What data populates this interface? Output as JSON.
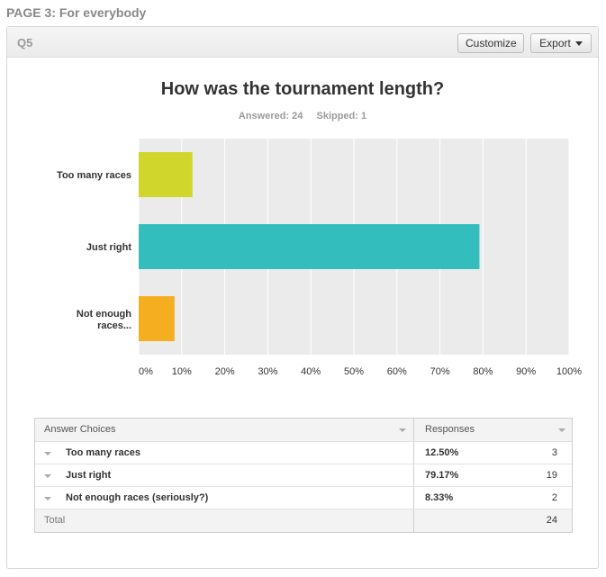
{
  "page": {
    "header": "PAGE 3: For everybody"
  },
  "question": {
    "label": "Q5",
    "customize_label": "Customize",
    "export_label": "Export"
  },
  "summary": {
    "answered": "Answered: 24",
    "skipped": "Skipped: 1"
  },
  "chart_data": {
    "type": "bar",
    "orientation": "horizontal",
    "title": "How was the tournament length?",
    "categories": [
      "Too many races",
      "Just right",
      "Not enough races..."
    ],
    "values": [
      12.5,
      79.17,
      8.33
    ],
    "colors": [
      "#d0d62b",
      "#33bdbd",
      "#f6ae21"
    ],
    "xlim": [
      0,
      100
    ],
    "x_ticks": [
      "0%",
      "10%",
      "20%",
      "30%",
      "40%",
      "50%",
      "60%",
      "70%",
      "80%",
      "90%",
      "100%"
    ],
    "grid": true,
    "background": "#ebebeb"
  },
  "table": {
    "headers": {
      "choices": "Answer Choices",
      "responses": "Responses"
    },
    "rows": [
      {
        "choice": "Too many races",
        "percent": "12.50%",
        "count": "3"
      },
      {
        "choice": "Just right",
        "percent": "79.17%",
        "count": "19"
      },
      {
        "choice": "Not enough races (seriously?)",
        "percent": "8.33%",
        "count": "2"
      }
    ],
    "total_label": "Total",
    "total_count": "24"
  }
}
